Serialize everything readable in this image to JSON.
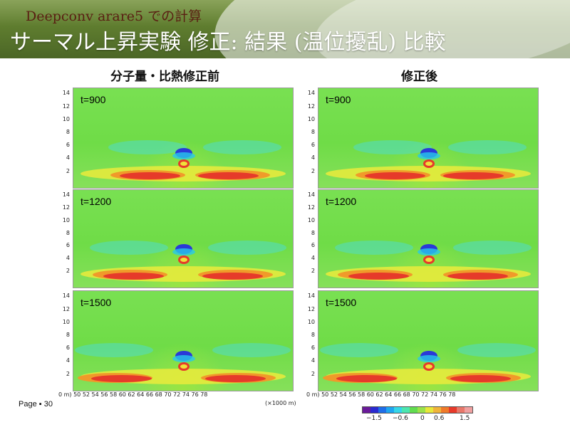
{
  "header": {
    "subtitle": "Deepconv arare5 での計算",
    "title": "サーマル上昇実験 修正: 結果 (温位擾乱) 比較"
  },
  "columns": {
    "left": "分子量・比熱修正前",
    "right": "修正後"
  },
  "panels": {
    "left": [
      "t=900",
      "t=1200",
      "t=1500"
    ],
    "right": [
      "t=900",
      "t=1200",
      "t=1500"
    ]
  },
  "axes": {
    "y_ticks": [
      "14",
      "12",
      "10",
      "8",
      "6",
      "4",
      "2"
    ],
    "x_left": "0 m) 50 52 54 56 58 60 62 64 66 68 70 72 74 76 78",
    "x_right": "0 m) 50 52 54 56 58 60 62 64 66 68 70 72 74 76 78",
    "x_unit": "(×1000 m)"
  },
  "colorbar": {
    "labels": [
      "−1.5",
      "−0.6",
      "0",
      "0.6",
      "1.5"
    ],
    "colors": [
      "#6a1a9a",
      "#2a2ad0",
      "#1f6ee8",
      "#1fa6f0",
      "#35d6e8",
      "#4ce6b0",
      "#62dc50",
      "#9be24a",
      "#e8e83a",
      "#f0b43a",
      "#f07a2a",
      "#e83a2a",
      "#e8786a",
      "#f0a0a0"
    ]
  },
  "footer": {
    "page": "Page ▪ 30"
  }
}
